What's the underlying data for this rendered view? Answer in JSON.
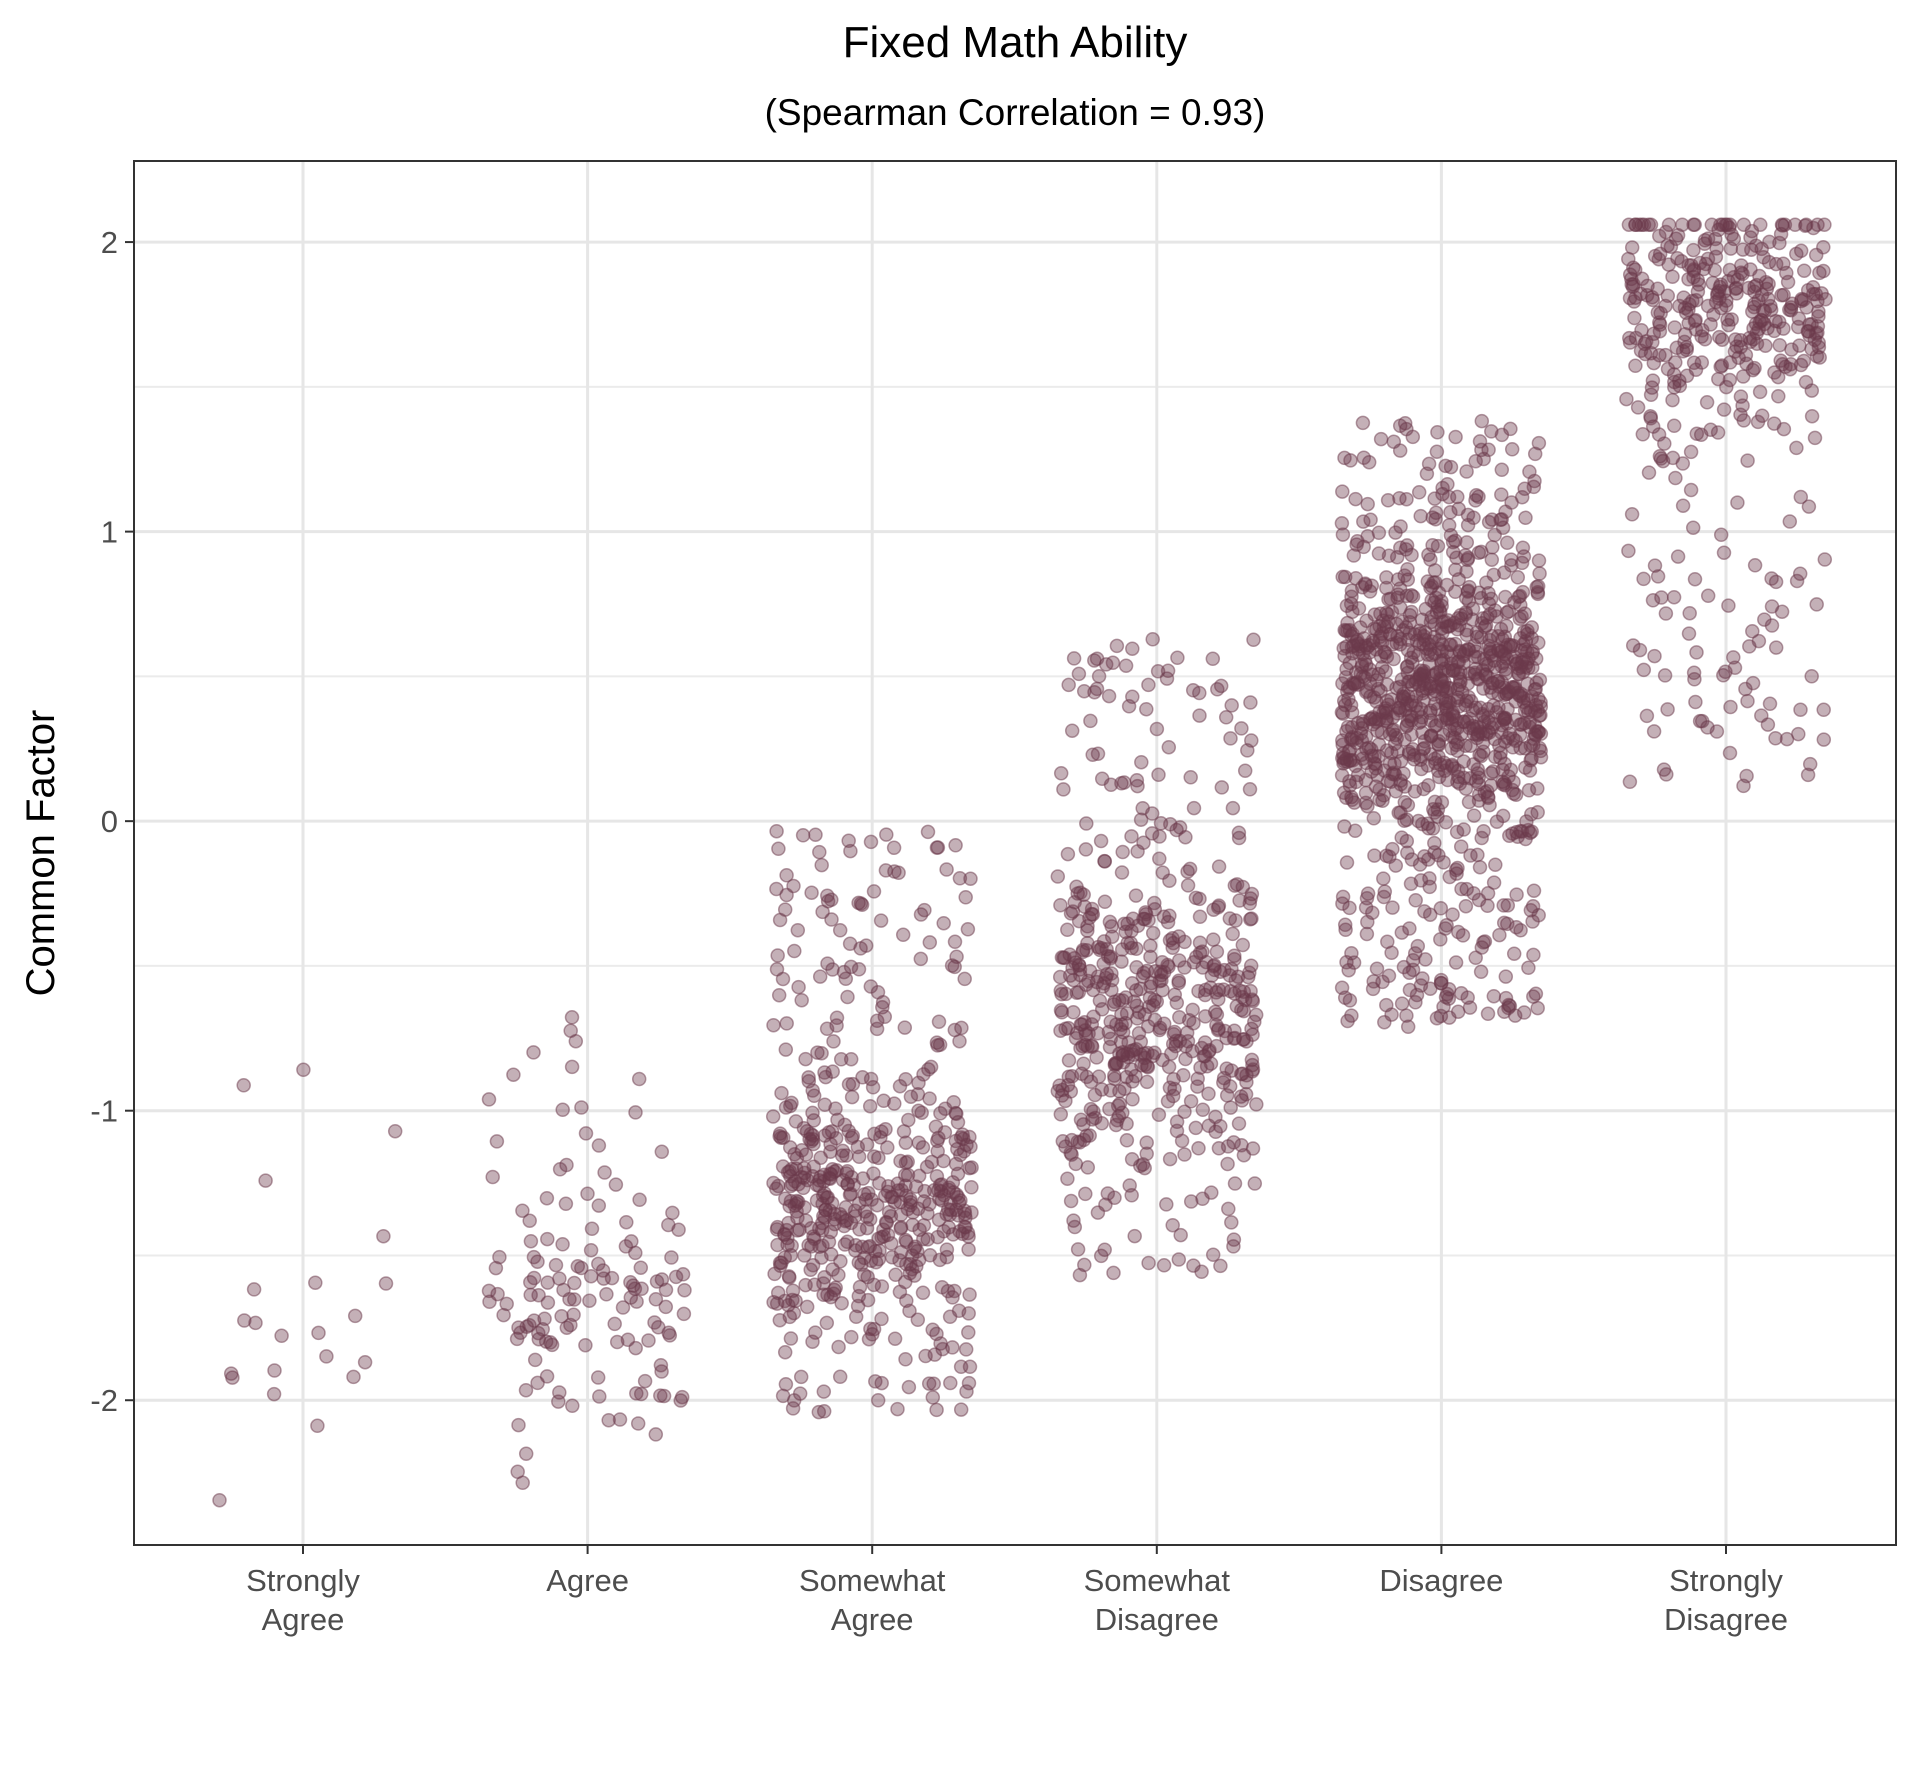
{
  "chart_data": {
    "type": "scatter",
    "title": "Fixed Math Ability",
    "subtitle": "(Spearman Correlation = 0.93)",
    "xlabel": "",
    "ylabel": "Common Factor",
    "ylim": [
      -2.5,
      2.28
    ],
    "y_ticks": [
      {
        "value": 2,
        "label": "2"
      },
      {
        "value": 1,
        "label": "1"
      },
      {
        "value": 0,
        "label": "0"
      },
      {
        "value": -1,
        "label": "-1"
      },
      {
        "value": -2,
        "label": "-2"
      }
    ],
    "y_minor_gridlines": [
      -2.5,
      -1.5,
      -0.5,
      0.5,
      1.5
    ],
    "grid": true,
    "jitter": true,
    "point_color": "#6b3a4b",
    "point_opacity": 0.4,
    "categories": [
      {
        "label_lines": [
          "Strongly",
          "Agree"
        ],
        "n": 22,
        "y_range": [
          -2.35,
          -0.84
        ],
        "center_bias": -1.9
      },
      {
        "label_lines": [
          "Agree"
        ],
        "n": 140,
        "y_range": [
          -2.3,
          -0.67
        ],
        "center_bias": -1.7
      },
      {
        "label_lines": [
          "Somewhat",
          "Agree"
        ],
        "n": 560,
        "y_range": [
          -2.05,
          -0.02
        ],
        "center_bias": -1.3
      },
      {
        "label_lines": [
          "Somewhat",
          "Disagree"
        ],
        "n": 560,
        "y_range": [
          -1.57,
          0.63
        ],
        "center_bias": -0.7
      },
      {
        "label_lines": [
          "Disagree"
        ],
        "n": 1100,
        "y_range": [
          -0.72,
          1.39
        ],
        "center_bias": 0.45
      },
      {
        "label_lines": [
          "Strongly",
          "Disagree"
        ],
        "n": 420,
        "y_range": [
          0.11,
          2.06
        ],
        "center_bias": 1.8
      }
    ]
  }
}
